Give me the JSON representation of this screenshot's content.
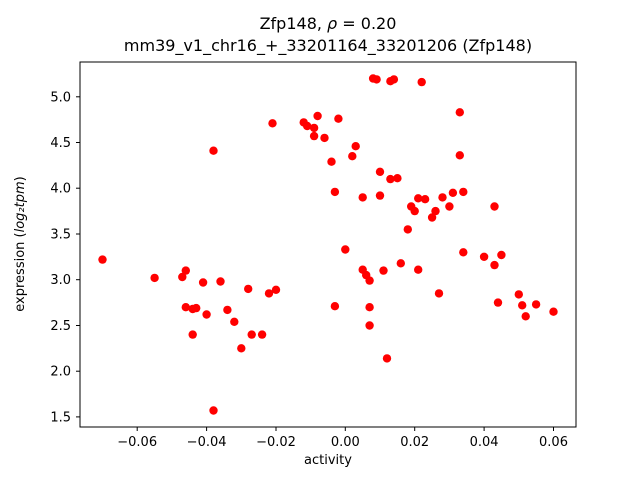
{
  "figure": {
    "background": "#ffffff",
    "title_part1": "Zfp148, ",
    "title_rho": "ρ",
    "title_part2": " = 0.20",
    "title_line2": "mm39_v1_chr16_+_33201164_33201206 (Zfp148)",
    "xlabel": "activity",
    "ylabel_prefix": "expression (",
    "ylabel_math": "log₂tpm",
    "ylabel_suffix": ")"
  },
  "chart_data": {
    "type": "scatter",
    "title": "Zfp148, ρ = 0.20\nmm39_v1_chr16_+_33201164_33201206 (Zfp148)",
    "xlabel": "activity",
    "ylabel": "expression (log2 tpm)",
    "legend": "none",
    "grid": false,
    "marker": "o",
    "color": "#ff0000",
    "xlim": [
      -0.0765,
      0.0665
    ],
    "ylim": [
      1.39,
      5.38
    ],
    "xticks": [
      -0.06,
      -0.04,
      -0.02,
      0.0,
      0.02,
      0.04,
      0.06
    ],
    "xtick_labels": [
      "−0.06",
      "−0.04",
      "−0.02",
      "0.00",
      "0.02",
      "0.04",
      "0.06"
    ],
    "yticks": [
      1.5,
      2.0,
      2.5,
      3.0,
      3.5,
      4.0,
      4.5,
      5.0
    ],
    "ytick_labels": [
      "1.5",
      "2.0",
      "2.5",
      "3.0",
      "3.5",
      "4.0",
      "4.5",
      "5.0"
    ],
    "points": [
      [
        -0.07,
        3.22
      ],
      [
        -0.055,
        3.02
      ],
      [
        -0.047,
        3.03
      ],
      [
        -0.046,
        3.1
      ],
      [
        -0.046,
        2.7
      ],
      [
        -0.044,
        2.68
      ],
      [
        -0.043,
        2.69
      ],
      [
        -0.044,
        2.4
      ],
      [
        -0.041,
        2.97
      ],
      [
        -0.04,
        2.62
      ],
      [
        -0.038,
        4.41
      ],
      [
        -0.038,
        1.57
      ],
      [
        -0.036,
        2.98
      ],
      [
        -0.034,
        2.67
      ],
      [
        -0.032,
        2.54
      ],
      [
        -0.03,
        2.25
      ],
      [
        -0.028,
        2.9
      ],
      [
        -0.027,
        2.4
      ],
      [
        -0.024,
        2.4
      ],
      [
        -0.022,
        2.85
      ],
      [
        -0.02,
        2.89
      ],
      [
        -0.021,
        4.71
      ],
      [
        -0.012,
        4.72
      ],
      [
        -0.011,
        4.68
      ],
      [
        -0.009,
        4.66
      ],
      [
        -0.008,
        4.79
      ],
      [
        -0.009,
        4.57
      ],
      [
        -0.006,
        4.55
      ],
      [
        -0.004,
        4.29
      ],
      [
        -0.003,
        3.96
      ],
      [
        -0.002,
        4.76
      ],
      [
        -0.003,
        2.71
      ],
      [
        0.0,
        3.33
      ],
      [
        0.002,
        4.35
      ],
      [
        0.003,
        4.46
      ],
      [
        0.005,
        3.9
      ],
      [
        0.005,
        3.11
      ],
      [
        0.006,
        3.05
      ],
      [
        0.007,
        2.99
      ],
      [
        0.007,
        2.7
      ],
      [
        0.007,
        2.5
      ],
      [
        0.008,
        5.2
      ],
      [
        0.009,
        5.19
      ],
      [
        0.01,
        4.18
      ],
      [
        0.01,
        3.92
      ],
      [
        0.011,
        3.1
      ],
      [
        0.012,
        2.14
      ],
      [
        0.013,
        5.17
      ],
      [
        0.013,
        4.1
      ],
      [
        0.014,
        5.19
      ],
      [
        0.015,
        4.11
      ],
      [
        0.016,
        3.18
      ],
      [
        0.018,
        3.55
      ],
      [
        0.019,
        3.8
      ],
      [
        0.02,
        3.75
      ],
      [
        0.021,
        3.89
      ],
      [
        0.021,
        3.11
      ],
      [
        0.022,
        5.16
      ],
      [
        0.023,
        3.88
      ],
      [
        0.025,
        3.68
      ],
      [
        0.026,
        3.75
      ],
      [
        0.027,
        2.85
      ],
      [
        0.028,
        3.9
      ],
      [
        0.03,
        3.8
      ],
      [
        0.031,
        3.95
      ],
      [
        0.033,
        4.83
      ],
      [
        0.033,
        4.36
      ],
      [
        0.034,
        3.96
      ],
      [
        0.034,
        3.3
      ],
      [
        0.04,
        3.25
      ],
      [
        0.043,
        3.8
      ],
      [
        0.043,
        3.16
      ],
      [
        0.044,
        2.75
      ],
      [
        0.045,
        3.27
      ],
      [
        0.05,
        2.84
      ],
      [
        0.051,
        2.72
      ],
      [
        0.052,
        2.6
      ],
      [
        0.055,
        2.73
      ],
      [
        0.06,
        2.65
      ]
    ]
  }
}
